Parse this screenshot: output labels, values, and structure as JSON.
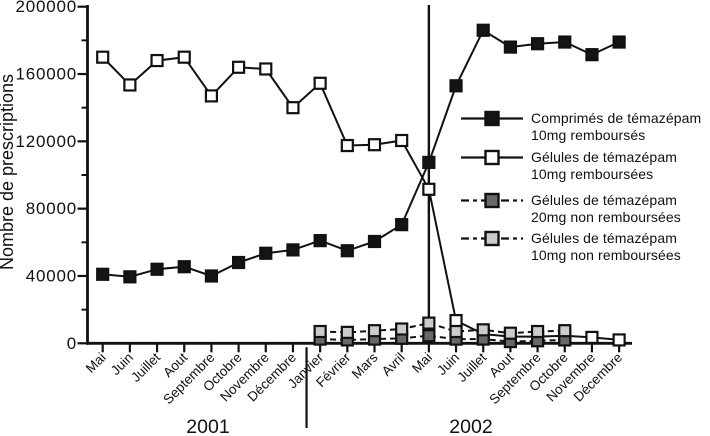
{
  "chart_data": {
    "type": "line",
    "title": "",
    "xlabel": "",
    "ylabel": "Nombre de prescriptions",
    "ylim": [
      0,
      200000
    ],
    "y_major_ticks": [
      0,
      40000,
      80000,
      120000,
      160000,
      200000
    ],
    "y_minor_ticks": [
      20000,
      60000,
      100000,
      140000,
      180000
    ],
    "grid": "off",
    "legend_position": "right",
    "months": [
      "Mai",
      "Juin",
      "Juillet",
      "Aout",
      "Septembre",
      "Octobre",
      "Novembre",
      "Décembre",
      "Janvier",
      "Février",
      "Mars",
      "Avril",
      "Mai",
      "Juin",
      "Juillet",
      "Aout",
      "Septembre",
      "Octobre",
      "Novembre",
      "Décembre"
    ],
    "periods": [
      {
        "label": "2001",
        "start_index": 0,
        "end_index": 7
      },
      {
        "label": "2002",
        "start_index": 8,
        "end_index": 19
      }
    ],
    "annotations": {
      "vertical_line_month_index": 12,
      "year_separator_between_indices": [
        7,
        8
      ]
    },
    "series": [
      {
        "id": "comprimes-10mg-rembourses",
        "name": "Comprimés de témazépam 10mg remboursés",
        "marker_fill": "#141414",
        "line": "solid",
        "start_month_index": 0,
        "values": [
          41000,
          39500,
          44000,
          45500,
          40000,
          48000,
          53500,
          55500,
          61000,
          55000,
          60500,
          70500,
          107500,
          153000,
          186000,
          176000,
          178000,
          179000,
          171500,
          179000
        ]
      },
      {
        "id": "gelules-10mg-remboursees",
        "name": "Gélules de témazépam 10mg remboursées",
        "marker_fill": "#ffffff",
        "line": "solid",
        "start_month_index": 0,
        "values": [
          170000,
          153500,
          168000,
          170000,
          147000,
          164000,
          163000,
          140000,
          154500,
          117500,
          118000,
          120500,
          91500,
          13500,
          5500,
          4000,
          4000,
          4500,
          3500,
          2000
        ]
      },
      {
        "id": "gelules-20mg-non-remboursees",
        "name": "Gélules de témazépam 20mg non remboursées",
        "marker_fill": "#686868",
        "line": "dashed",
        "start_month_index": 8,
        "values": [
          2500,
          2000,
          2500,
          3000,
          4500,
          2500,
          2500,
          1000,
          1500,
          2000
        ]
      },
      {
        "id": "gelules-10mg-non-remboursees",
        "name": "Gélules de témazépam 10mg non remboursées",
        "marker_fill": "#cccccc",
        "line": "dashed",
        "start_month_index": 8,
        "values": [
          7000,
          6500,
          7500,
          8500,
          12000,
          7000,
          8000,
          6000,
          7000,
          7500
        ]
      }
    ],
    "legend": [
      {
        "line1": "Comprimés de témazépam",
        "line2": "10mg remboursés",
        "marker_fill": "#141414",
        "dash": "0"
      },
      {
        "line1": "Gélules de témazépam",
        "line2": "10mg remboursées",
        "marker_fill": "#ffffff",
        "dash": "0"
      },
      {
        "line1": "Gélules de témazépam",
        "line2": "20mg non remboursées",
        "marker_fill": "#686868",
        "dash": "8 4 4 4"
      },
      {
        "line1": "Gélules de témazépam",
        "line2": "10mg non remboursées",
        "marker_fill": "#cccccc",
        "dash": "8 4 4 4"
      }
    ]
  }
}
